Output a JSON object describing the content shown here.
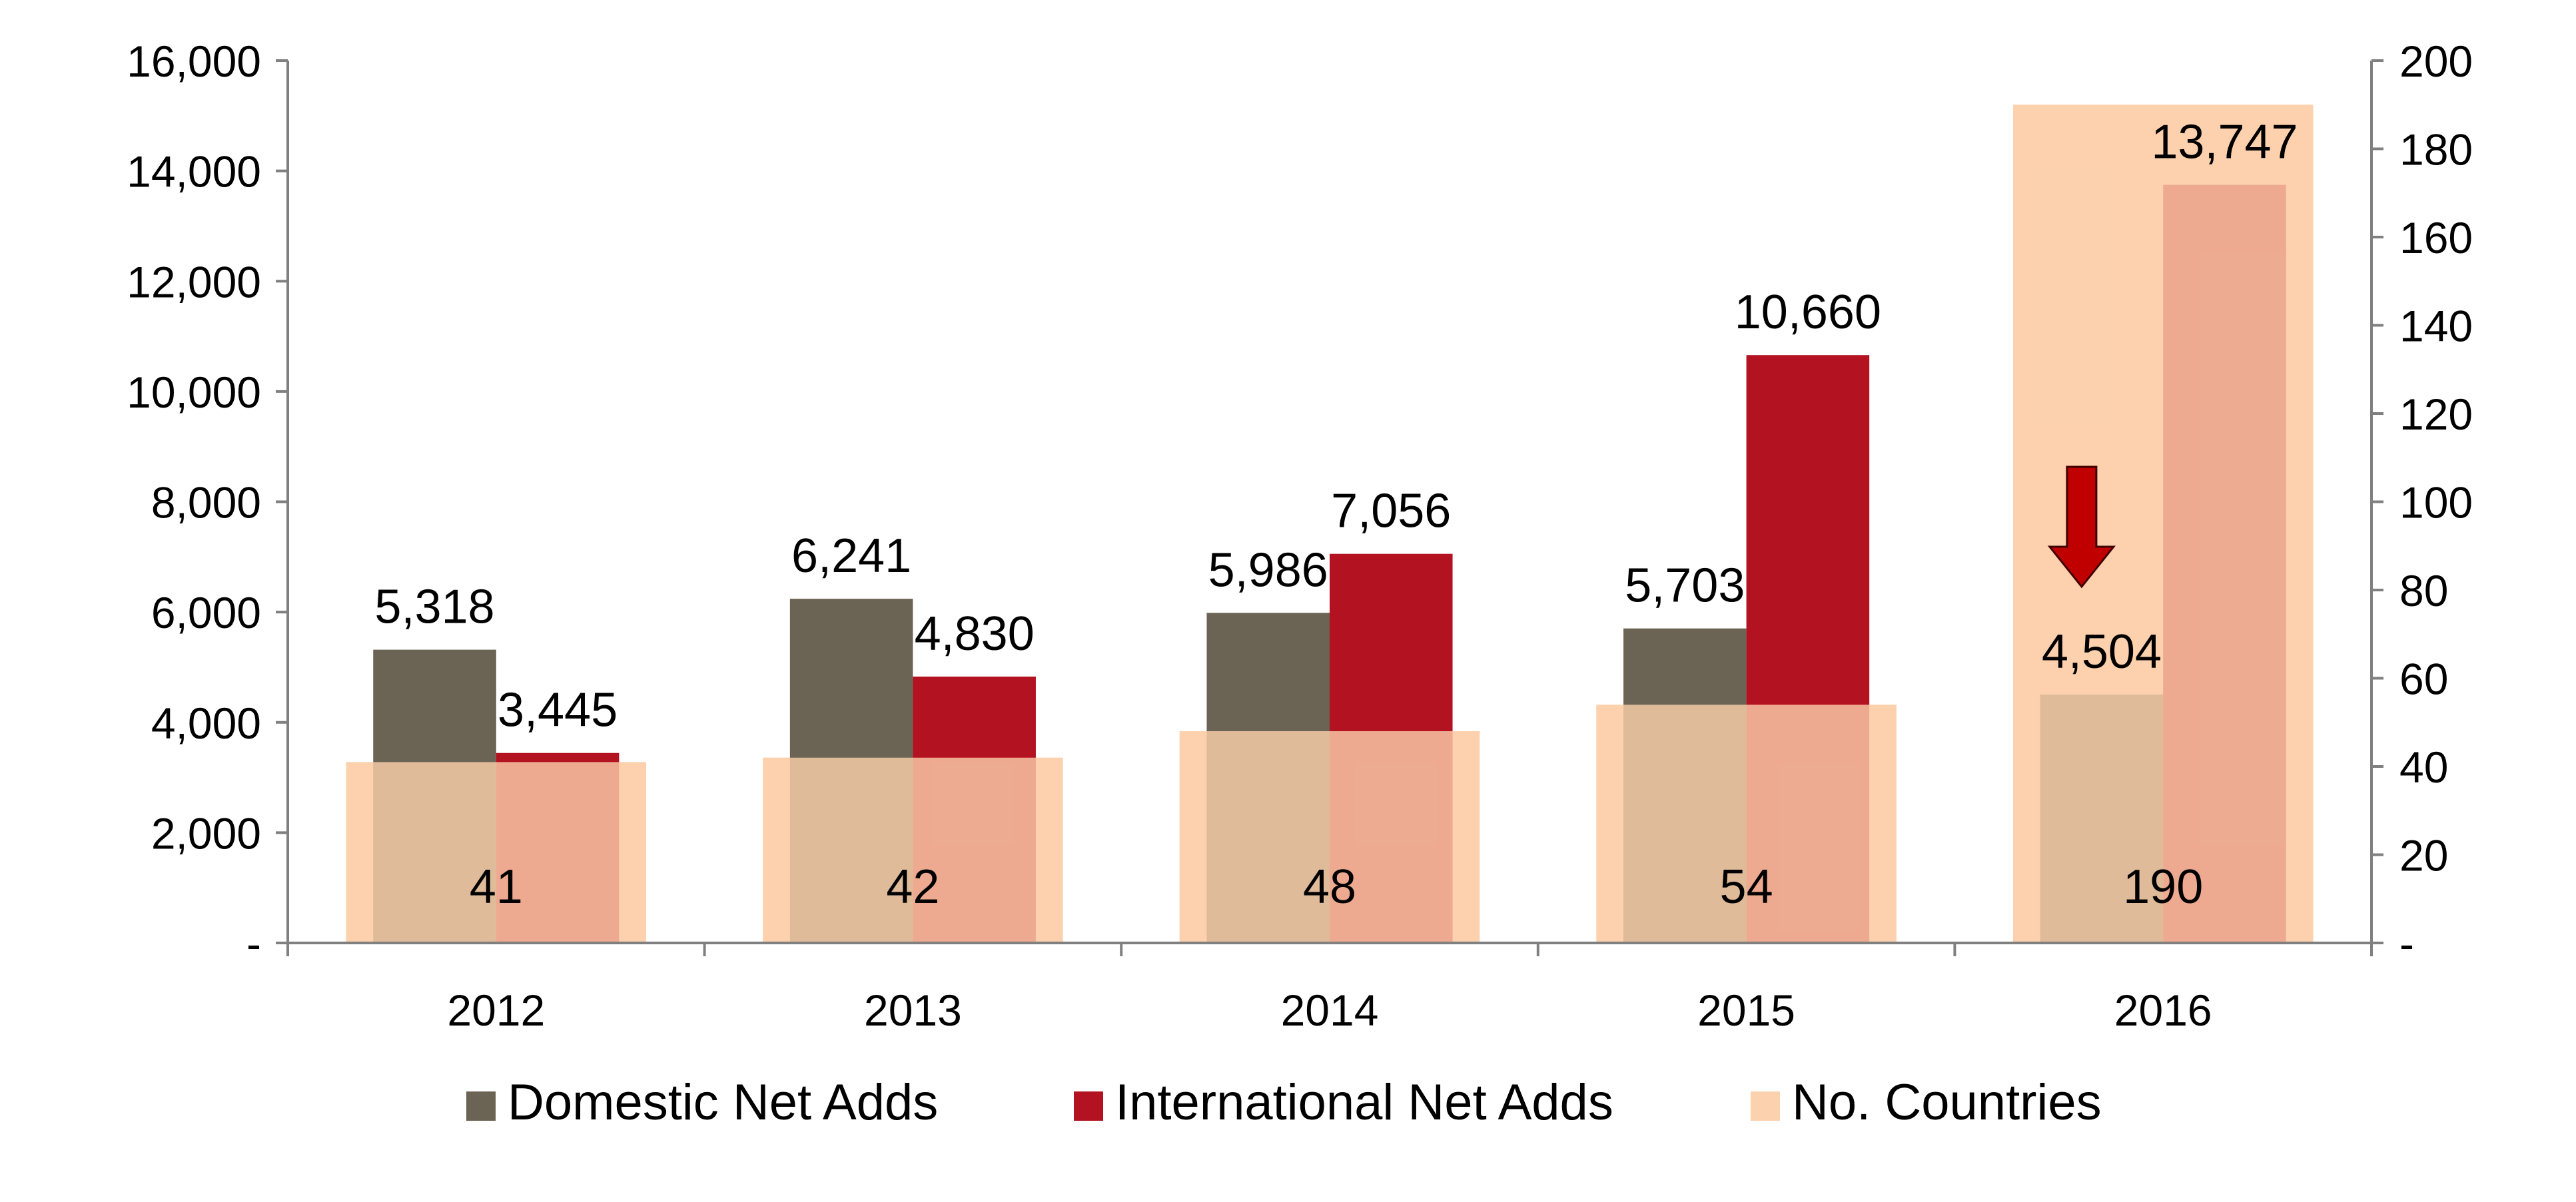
{
  "chart_data": {
    "type": "bar",
    "categories": [
      "2012",
      "2013",
      "2014",
      "2015",
      "2016"
    ],
    "series": [
      {
        "name": "Domestic Net Adds",
        "axis": "left",
        "values": [
          5318,
          6241,
          5986,
          5703,
          4504
        ],
        "labels": [
          "5,318",
          "6,241",
          "5,986",
          "5,703",
          "4,504"
        ],
        "color": "#6b6353"
      },
      {
        "name": "International Net Adds",
        "axis": "left",
        "values": [
          3445,
          4830,
          7056,
          10660,
          13747
        ],
        "labels": [
          "3,445",
          "4,830",
          "7,056",
          "10,660",
          "13,747"
        ],
        "color": "#b31220"
      },
      {
        "name": "No. Countries",
        "axis": "right",
        "values": [
          41,
          42,
          48,
          54,
          190
        ],
        "labels": [
          "41",
          "42",
          "48",
          "54",
          "190"
        ],
        "color": "#fcd1ad",
        "opacity": 0.8
      }
    ],
    "y_left": {
      "min": 0,
      "max": 16000,
      "ticks": [
        "-",
        "2,000",
        "4,000",
        "6,000",
        "8,000",
        "10,000",
        "12,000",
        "14,000",
        "16,000"
      ]
    },
    "y_right": {
      "min": 0,
      "max": 200,
      "ticks": [
        "-",
        "20",
        "40",
        "60",
        "80",
        "100",
        "120",
        "140",
        "160",
        "180",
        "200"
      ]
    },
    "annotation": {
      "type": "down-arrow",
      "category": "2016",
      "color": "#c00000"
    },
    "legend_position": "bottom",
    "grid": false,
    "title": "",
    "xlabel": "",
    "ylabel": ""
  }
}
